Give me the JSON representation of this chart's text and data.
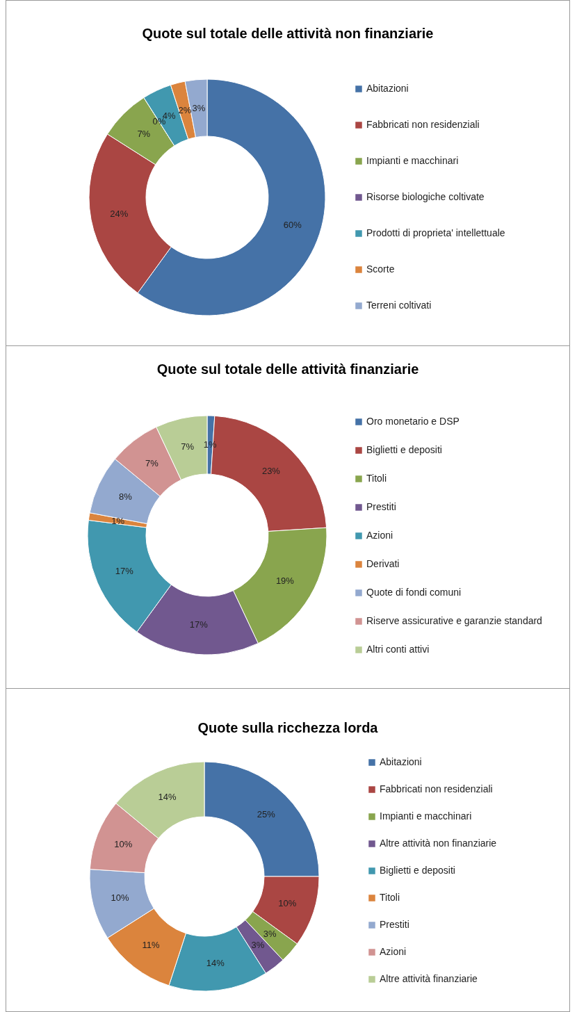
{
  "chart_data": [
    {
      "type": "donut",
      "title": "Quote sul totale delle attività non finanziarie",
      "categories": [
        "Abitazioni",
        "Fabbricati non residenziali",
        "Impianti e macchinari",
        "Risorse biologiche coltivate",
        "Prodotti di proprieta' intellettuale",
        "Scorte",
        "Terreni coltivati"
      ],
      "values": [
        60,
        24,
        7,
        0,
        4,
        2,
        3
      ],
      "value_labels": [
        "60%",
        "24%",
        "7%",
        "0%",
        "4%",
        "2%",
        "3%"
      ],
      "colors": [
        "#4572a7",
        "#aa4643",
        "#89a54e",
        "#71588f",
        "#4198af",
        "#db843d",
        "#93a9cf"
      ],
      "legend": "right"
    },
    {
      "type": "donut",
      "title": "Quote sul totale delle attività finanziarie",
      "categories": [
        "Oro monetario e DSP",
        "Biglietti e depositi",
        "Titoli",
        "Prestiti",
        "Azioni",
        "Derivati",
        "Quote di fondi comuni",
        "Riserve assicurative e garanzie standard",
        "Altri conti attivi"
      ],
      "values": [
        1,
        23,
        19,
        17,
        17,
        1,
        8,
        7,
        7
      ],
      "value_labels": [
        "1%",
        "23%",
        "19%",
        "17%",
        "17%",
        "1%",
        "8%",
        "7%",
        "7%"
      ],
      "colors": [
        "#4572a7",
        "#aa4643",
        "#89a54e",
        "#71588f",
        "#4198af",
        "#db843d",
        "#93a9cf",
        "#d19392",
        "#b9cd96"
      ],
      "legend": "right"
    },
    {
      "type": "donut",
      "title": "Quote sulla ricchezza lorda",
      "categories": [
        "Abitazioni",
        "Fabbricati non residenziali",
        "Impianti e macchinari",
        "Altre attività non finanziarie",
        "Biglietti e depositi",
        "Titoli",
        "Prestiti",
        "Azioni",
        "Altre attività finanziarie"
      ],
      "values": [
        25,
        10,
        3,
        3,
        14,
        11,
        10,
        10,
        14
      ],
      "value_labels": [
        "25%",
        "10%",
        "3%",
        "3%",
        "14%",
        "11%",
        "10%",
        "10%",
        "14%"
      ],
      "colors": [
        "#4572a7",
        "#aa4643",
        "#89a54e",
        "#71588f",
        "#4198af",
        "#db843d",
        "#93a9cf",
        "#d19392",
        "#b9cd96"
      ],
      "legend": "right"
    }
  ]
}
